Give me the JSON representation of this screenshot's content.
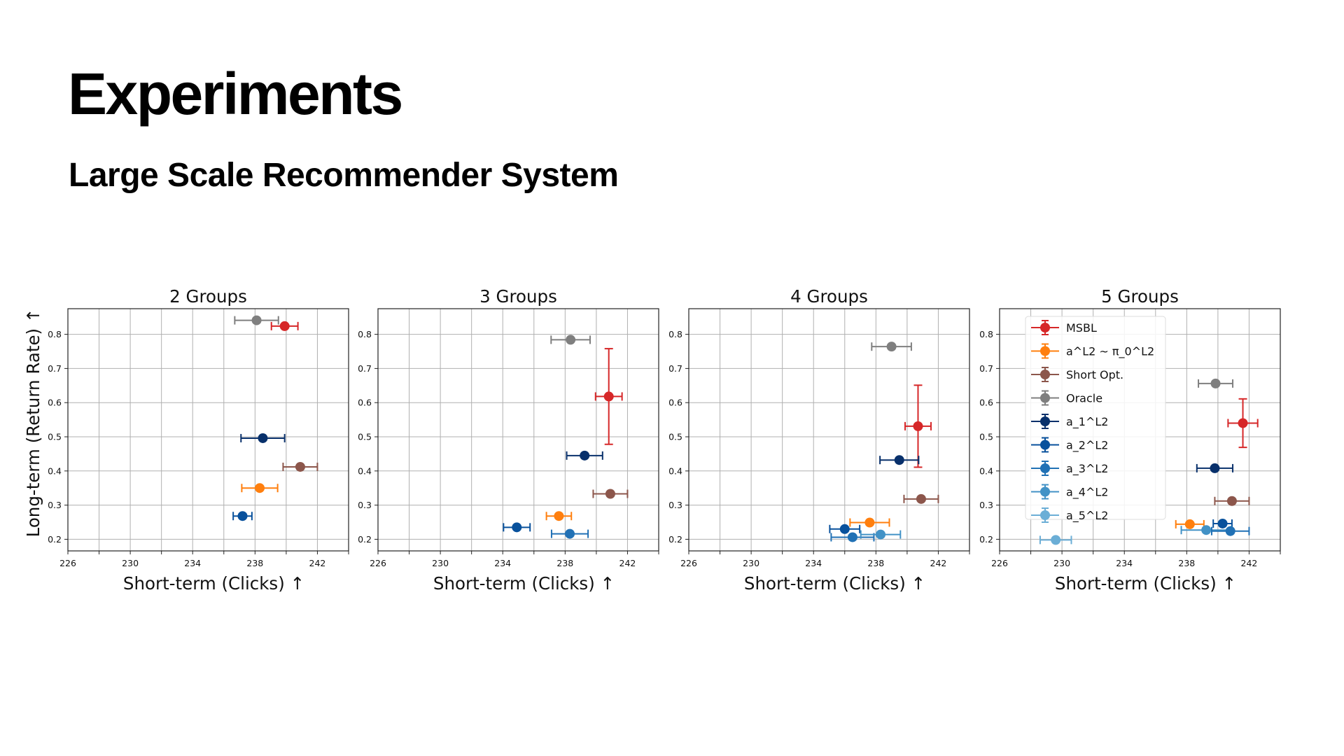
{
  "slide": {
    "title": "Experiments",
    "subtitle": "Large Scale Recommender System"
  },
  "legend": {
    "placement": "upper-left of 5 Groups panel",
    "entries": [
      {
        "name": "MSBL",
        "color": "#d62728"
      },
      {
        "name": "a^L2 ~ π_0^L2",
        "color": "#ff7f0e"
      },
      {
        "name": "Short Opt.",
        "color": "#8c564b"
      },
      {
        "name": "Oracle",
        "color": "#7f7f7f"
      },
      {
        "name": "a_1^L2",
        "color": "#08306b"
      },
      {
        "name": "a_2^L2",
        "color": "#08519c"
      },
      {
        "name": "a_3^L2",
        "color": "#2171b5"
      },
      {
        "name": "a_4^L2",
        "color": "#4292c6"
      },
      {
        "name": "a_5^L2",
        "color": "#6baed6"
      }
    ]
  },
  "chart_data": [
    {
      "type": "scatter",
      "title": "2 Groups",
      "xlabel": "Short-term (Clicks)  ↑",
      "ylabel": "Long-term (Return Rate)  ↑",
      "xlim": [
        226,
        244
      ],
      "ylim": [
        0.166,
        0.875
      ],
      "xticks": [
        226,
        230,
        234,
        238,
        242
      ],
      "xgrid": [
        228,
        230,
        232,
        234,
        236,
        238,
        240,
        242
      ],
      "yticks": [
        0.2,
        0.3,
        0.4,
        0.5,
        0.6,
        0.7,
        0.8
      ],
      "grid": true,
      "series": [
        {
          "name": "Oracle",
          "x": 238.1,
          "y": 0.841,
          "xerr": 1.4,
          "yerr": 0
        },
        {
          "name": "MSBL",
          "x": 239.9,
          "y": 0.824,
          "xerr": 0.85,
          "yerr": 0
        },
        {
          "name": "a_1^L2",
          "x": 238.5,
          "y": 0.496,
          "xerr": 1.4,
          "yerr": 0
        },
        {
          "name": "Short Opt.",
          "x": 240.9,
          "y": 0.412,
          "xerr": 1.1,
          "yerr": 0
        },
        {
          "name": "a^L2 ~ π_0^L2",
          "x": 238.3,
          "y": 0.35,
          "xerr": 1.15,
          "yerr": 0
        },
        {
          "name": "a_2^L2",
          "x": 237.2,
          "y": 0.268,
          "xerr": 0.6,
          "yerr": 0
        }
      ]
    },
    {
      "type": "scatter",
      "title": "3 Groups",
      "xlabel": "Short-term (Clicks)  ↑",
      "ylabel": "",
      "xlim": [
        226,
        244
      ],
      "ylim": [
        0.166,
        0.875
      ],
      "xticks": [
        226,
        230,
        234,
        238,
        242
      ],
      "xgrid": [
        228,
        230,
        232,
        234,
        236,
        238,
        240,
        242
      ],
      "yticks": [
        0.2,
        0.3,
        0.4,
        0.5,
        0.6,
        0.7,
        0.8
      ],
      "grid": true,
      "series": [
        {
          "name": "Oracle",
          "x": 238.35,
          "y": 0.784,
          "xerr": 1.25,
          "yerr": 0
        },
        {
          "name": "MSBL",
          "x": 240.8,
          "y": 0.618,
          "xerr": 0.85,
          "yerr": 0.14
        },
        {
          "name": "a_1^L2",
          "x": 239.25,
          "y": 0.445,
          "xerr": 1.15,
          "yerr": 0
        },
        {
          "name": "Short Opt.",
          "x": 240.9,
          "y": 0.333,
          "xerr": 1.1,
          "yerr": 0
        },
        {
          "name": "a^L2 ~ π_0^L2",
          "x": 237.6,
          "y": 0.268,
          "xerr": 0.8,
          "yerr": 0
        },
        {
          "name": "a_2^L2",
          "x": 234.9,
          "y": 0.235,
          "xerr": 0.85,
          "yerr": 0
        },
        {
          "name": "a_3^L2",
          "x": 238.3,
          "y": 0.216,
          "xerr": 1.17,
          "yerr": 0
        }
      ]
    },
    {
      "type": "scatter",
      "title": "4 Groups",
      "xlabel": "Short-term (Clicks)  ↑",
      "ylabel": "",
      "xlim": [
        226,
        244
      ],
      "ylim": [
        0.166,
        0.875
      ],
      "xticks": [
        226,
        230,
        234,
        238,
        242
      ],
      "xgrid": [
        228,
        230,
        232,
        234,
        236,
        238,
        240,
        242
      ],
      "yticks": [
        0.2,
        0.3,
        0.4,
        0.5,
        0.6,
        0.7,
        0.8
      ],
      "grid": true,
      "series": [
        {
          "name": "Oracle",
          "x": 239.0,
          "y": 0.764,
          "xerr": 1.27,
          "yerr": 0
        },
        {
          "name": "MSBL",
          "x": 240.7,
          "y": 0.531,
          "xerr": 0.83,
          "yerr": 0.12
        },
        {
          "name": "a_1^L2",
          "x": 239.5,
          "y": 0.432,
          "xerr": 1.24,
          "yerr": 0
        },
        {
          "name": "Short Opt.",
          "x": 240.9,
          "y": 0.318,
          "xerr": 1.1,
          "yerr": 0
        },
        {
          "name": "a^L2 ~ π_0^L2",
          "x": 237.6,
          "y": 0.249,
          "xerr": 1.26,
          "yerr": 0
        },
        {
          "name": "a_2^L2",
          "x": 236.0,
          "y": 0.23,
          "xerr": 0.96,
          "yerr": 0
        },
        {
          "name": "a_3^L2",
          "x": 236.5,
          "y": 0.206,
          "xerr": 1.37,
          "yerr": 0
        },
        {
          "name": "a_4^L2",
          "x": 238.3,
          "y": 0.214,
          "xerr": 1.27,
          "yerr": 0
        }
      ]
    },
    {
      "type": "scatter",
      "title": "5 Groups",
      "xlabel": "Short-term (Clicks)  ↑",
      "ylabel": "",
      "xlim": [
        226,
        244
      ],
      "ylim": [
        0.166,
        0.875
      ],
      "xticks": [
        226,
        230,
        234,
        238,
        242
      ],
      "xgrid": [
        228,
        230,
        232,
        234,
        236,
        238,
        240,
        242
      ],
      "yticks": [
        0.2,
        0.3,
        0.4,
        0.5,
        0.6,
        0.7,
        0.8
      ],
      "grid": true,
      "legend": true,
      "series": [
        {
          "name": "Oracle",
          "x": 239.85,
          "y": 0.656,
          "xerr": 1.1,
          "yerr": 0
        },
        {
          "name": "MSBL",
          "x": 241.6,
          "y": 0.54,
          "xerr": 0.95,
          "yerr": 0.071
        },
        {
          "name": "a_1^L2",
          "x": 239.8,
          "y": 0.408,
          "xerr": 1.15,
          "yerr": 0
        },
        {
          "name": "Short Opt.",
          "x": 240.9,
          "y": 0.312,
          "xerr": 1.1,
          "yerr": 0
        },
        {
          "name": "a^L2 ~ π_0^L2",
          "x": 238.2,
          "y": 0.244,
          "xerr": 0.9,
          "yerr": 0
        },
        {
          "name": "a_2^L2",
          "x": 240.3,
          "y": 0.246,
          "xerr": 0.6,
          "yerr": 0
        },
        {
          "name": "a_4^L2",
          "x": 239.25,
          "y": 0.227,
          "xerr": 1.6,
          "yerr": 0
        },
        {
          "name": "a_3^L2",
          "x": 240.8,
          "y": 0.224,
          "xerr": 1.2,
          "yerr": 0
        },
        {
          "name": "a_5^L2",
          "x": 229.6,
          "y": 0.198,
          "xerr": 1.0,
          "yerr": 0
        }
      ]
    }
  ]
}
